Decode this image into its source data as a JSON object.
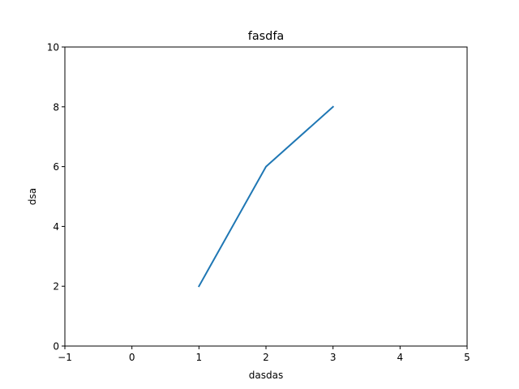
{
  "chart_data": {
    "type": "line",
    "title": "fasdfa",
    "xlabel": "dasdas",
    "ylabel": "dsa",
    "xlim": [
      -1,
      5
    ],
    "ylim": [
      0,
      10
    ],
    "x_ticks": [
      "−1",
      "0",
      "1",
      "2",
      "3",
      "4",
      "5"
    ],
    "y_ticks": [
      "0",
      "2",
      "4",
      "6",
      "8",
      "10"
    ],
    "grid": false,
    "series": [
      {
        "x": [
          1,
          2,
          3
        ],
        "y": [
          2,
          6,
          8
        ],
        "color": "#1f77b4"
      }
    ]
  }
}
